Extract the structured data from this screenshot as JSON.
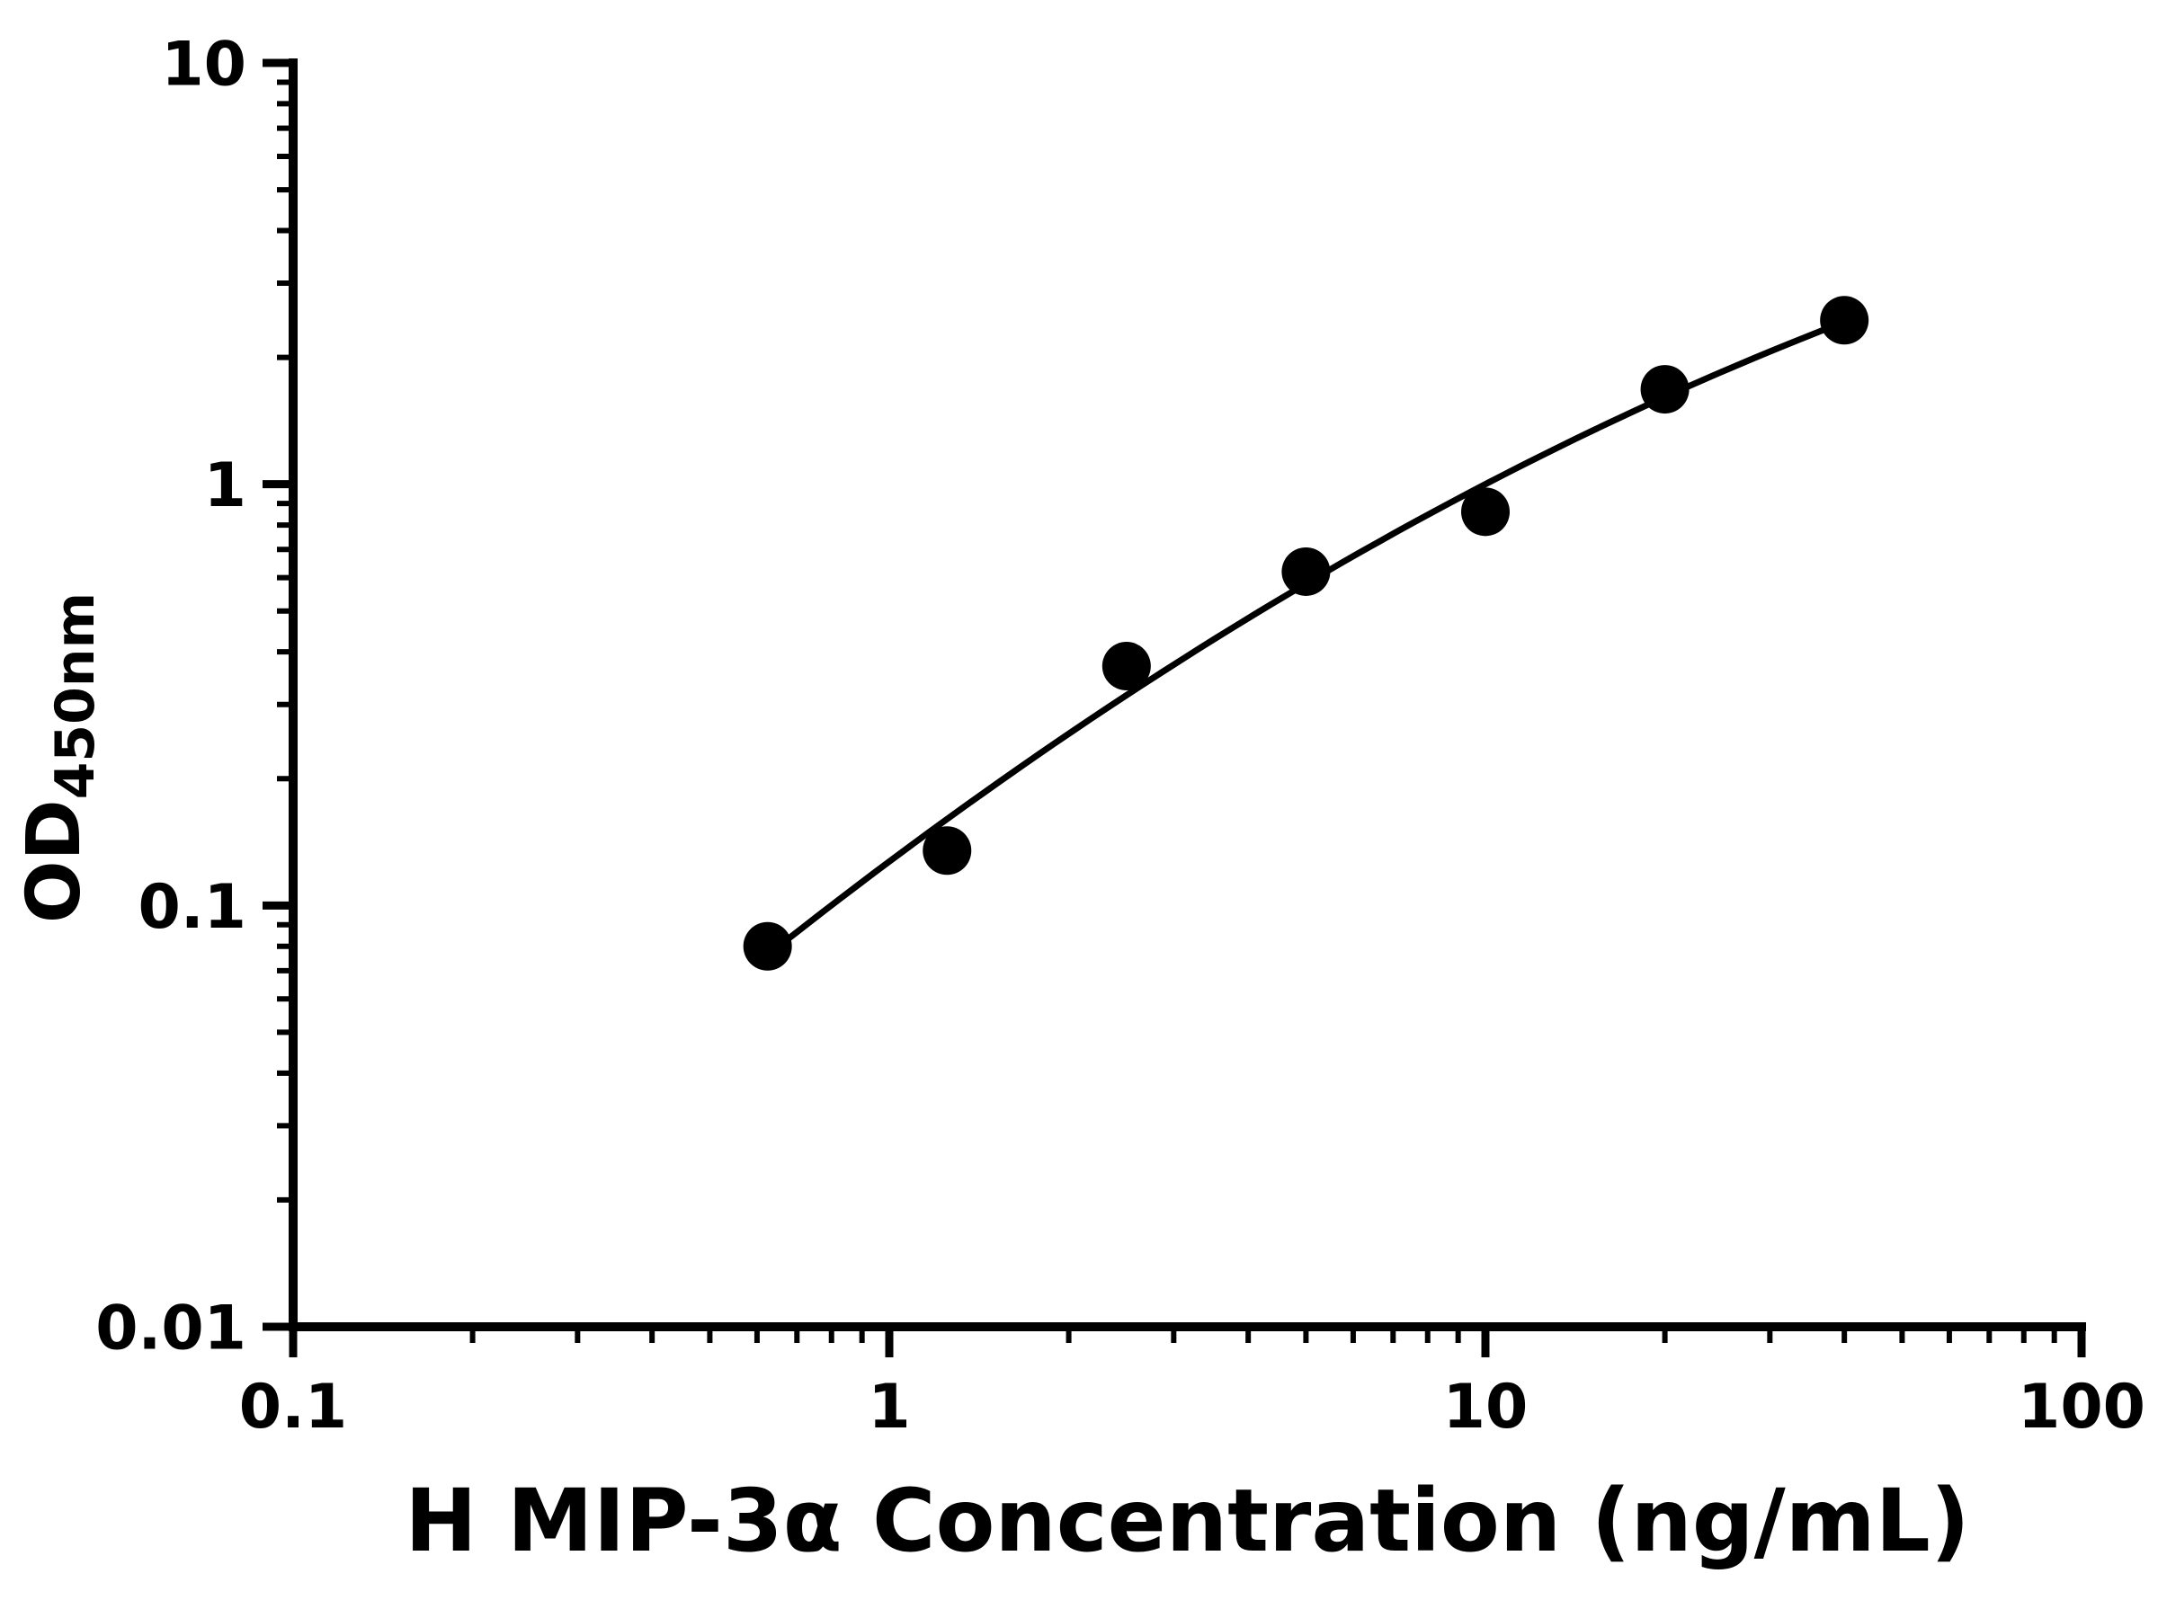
{
  "figure": {
    "background_color": "#ffffff",
    "accent_color": "#000000"
  },
  "chart_data": {
    "type": "scatter",
    "x": [
      0.625,
      1.25,
      2.5,
      5,
      10,
      20,
      40
    ],
    "y": [
      0.08,
      0.135,
      0.37,
      0.62,
      0.86,
      1.68,
      2.45
    ],
    "has_fit_curve": true,
    "title": "",
    "xlabel": "H MIP-3α Concentration (ng/mL)",
    "ylabel": "OD450nm",
    "ylabel_main": "OD",
    "ylabel_sub": "450nm",
    "xscale": "log",
    "yscale": "log",
    "xlim": [
      0.1,
      100
    ],
    "ylim": [
      0.01,
      10
    ],
    "x_ticks": [
      {
        "value": 0.1,
        "label": "0.1"
      },
      {
        "value": 1,
        "label": "1"
      },
      {
        "value": 10,
        "label": "10"
      },
      {
        "value": 100,
        "label": "100"
      }
    ],
    "y_ticks": [
      {
        "value": 0.01,
        "label": "0.01"
      },
      {
        "value": 0.1,
        "label": "0.1"
      },
      {
        "value": 1,
        "label": "1"
      },
      {
        "value": 10,
        "label": "10"
      }
    ],
    "minor_ticks": true,
    "grid": false,
    "legend": "none",
    "marker_color": "#000000",
    "line_color": "#000000"
  }
}
